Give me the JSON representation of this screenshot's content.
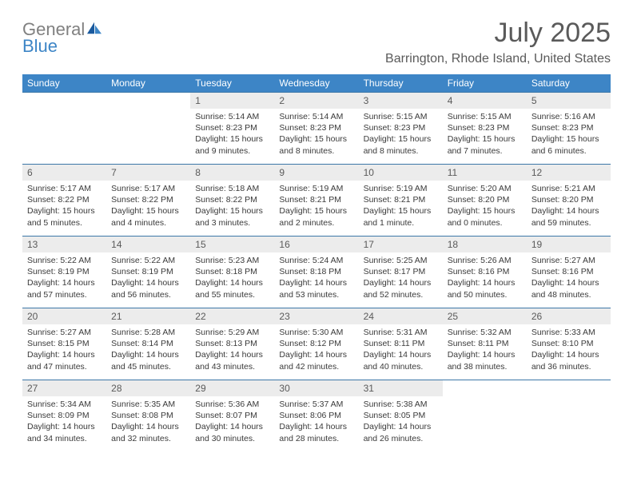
{
  "brand": {
    "word1": "General",
    "word2": "Blue"
  },
  "title": "July 2025",
  "location": "Barrington, Rhode Island, United States",
  "colors": {
    "header_bg": "#3d85c6",
    "header_text": "#ffffff",
    "row_border": "#3d78a8",
    "daynum_bg": "#ececec",
    "text_gray": "#5a5a5a",
    "body_text": "#3a3a3a",
    "page_bg": "#ffffff"
  },
  "dayHeaders": [
    "Sunday",
    "Monday",
    "Tuesday",
    "Wednesday",
    "Thursday",
    "Friday",
    "Saturday"
  ],
  "weeks": [
    [
      {
        "n": "",
        "sr": "",
        "ss": "",
        "dl": ""
      },
      {
        "n": "",
        "sr": "",
        "ss": "",
        "dl": ""
      },
      {
        "n": "1",
        "sr": "5:14 AM",
        "ss": "8:23 PM",
        "dl": "15 hours and 9 minutes."
      },
      {
        "n": "2",
        "sr": "5:14 AM",
        "ss": "8:23 PM",
        "dl": "15 hours and 8 minutes."
      },
      {
        "n": "3",
        "sr": "5:15 AM",
        "ss": "8:23 PM",
        "dl": "15 hours and 8 minutes."
      },
      {
        "n": "4",
        "sr": "5:15 AM",
        "ss": "8:23 PM",
        "dl": "15 hours and 7 minutes."
      },
      {
        "n": "5",
        "sr": "5:16 AM",
        "ss": "8:23 PM",
        "dl": "15 hours and 6 minutes."
      }
    ],
    [
      {
        "n": "6",
        "sr": "5:17 AM",
        "ss": "8:22 PM",
        "dl": "15 hours and 5 minutes."
      },
      {
        "n": "7",
        "sr": "5:17 AM",
        "ss": "8:22 PM",
        "dl": "15 hours and 4 minutes."
      },
      {
        "n": "8",
        "sr": "5:18 AM",
        "ss": "8:22 PM",
        "dl": "15 hours and 3 minutes."
      },
      {
        "n": "9",
        "sr": "5:19 AM",
        "ss": "8:21 PM",
        "dl": "15 hours and 2 minutes."
      },
      {
        "n": "10",
        "sr": "5:19 AM",
        "ss": "8:21 PM",
        "dl": "15 hours and 1 minute."
      },
      {
        "n": "11",
        "sr": "5:20 AM",
        "ss": "8:20 PM",
        "dl": "15 hours and 0 minutes."
      },
      {
        "n": "12",
        "sr": "5:21 AM",
        "ss": "8:20 PM",
        "dl": "14 hours and 59 minutes."
      }
    ],
    [
      {
        "n": "13",
        "sr": "5:22 AM",
        "ss": "8:19 PM",
        "dl": "14 hours and 57 minutes."
      },
      {
        "n": "14",
        "sr": "5:22 AM",
        "ss": "8:19 PM",
        "dl": "14 hours and 56 minutes."
      },
      {
        "n": "15",
        "sr": "5:23 AM",
        "ss": "8:18 PM",
        "dl": "14 hours and 55 minutes."
      },
      {
        "n": "16",
        "sr": "5:24 AM",
        "ss": "8:18 PM",
        "dl": "14 hours and 53 minutes."
      },
      {
        "n": "17",
        "sr": "5:25 AM",
        "ss": "8:17 PM",
        "dl": "14 hours and 52 minutes."
      },
      {
        "n": "18",
        "sr": "5:26 AM",
        "ss": "8:16 PM",
        "dl": "14 hours and 50 minutes."
      },
      {
        "n": "19",
        "sr": "5:27 AM",
        "ss": "8:16 PM",
        "dl": "14 hours and 48 minutes."
      }
    ],
    [
      {
        "n": "20",
        "sr": "5:27 AM",
        "ss": "8:15 PM",
        "dl": "14 hours and 47 minutes."
      },
      {
        "n": "21",
        "sr": "5:28 AM",
        "ss": "8:14 PM",
        "dl": "14 hours and 45 minutes."
      },
      {
        "n": "22",
        "sr": "5:29 AM",
        "ss": "8:13 PM",
        "dl": "14 hours and 43 minutes."
      },
      {
        "n": "23",
        "sr": "5:30 AM",
        "ss": "8:12 PM",
        "dl": "14 hours and 42 minutes."
      },
      {
        "n": "24",
        "sr": "5:31 AM",
        "ss": "8:11 PM",
        "dl": "14 hours and 40 minutes."
      },
      {
        "n": "25",
        "sr": "5:32 AM",
        "ss": "8:11 PM",
        "dl": "14 hours and 38 minutes."
      },
      {
        "n": "26",
        "sr": "5:33 AM",
        "ss": "8:10 PM",
        "dl": "14 hours and 36 minutes."
      }
    ],
    [
      {
        "n": "27",
        "sr": "5:34 AM",
        "ss": "8:09 PM",
        "dl": "14 hours and 34 minutes."
      },
      {
        "n": "28",
        "sr": "5:35 AM",
        "ss": "8:08 PM",
        "dl": "14 hours and 32 minutes."
      },
      {
        "n": "29",
        "sr": "5:36 AM",
        "ss": "8:07 PM",
        "dl": "14 hours and 30 minutes."
      },
      {
        "n": "30",
        "sr": "5:37 AM",
        "ss": "8:06 PM",
        "dl": "14 hours and 28 minutes."
      },
      {
        "n": "31",
        "sr": "5:38 AM",
        "ss": "8:05 PM",
        "dl": "14 hours and 26 minutes."
      },
      {
        "n": "",
        "sr": "",
        "ss": "",
        "dl": ""
      },
      {
        "n": "",
        "sr": "",
        "ss": "",
        "dl": ""
      }
    ]
  ],
  "labels": {
    "sunrise": "Sunrise: ",
    "sunset": "Sunset: ",
    "daylight": "Daylight: "
  }
}
